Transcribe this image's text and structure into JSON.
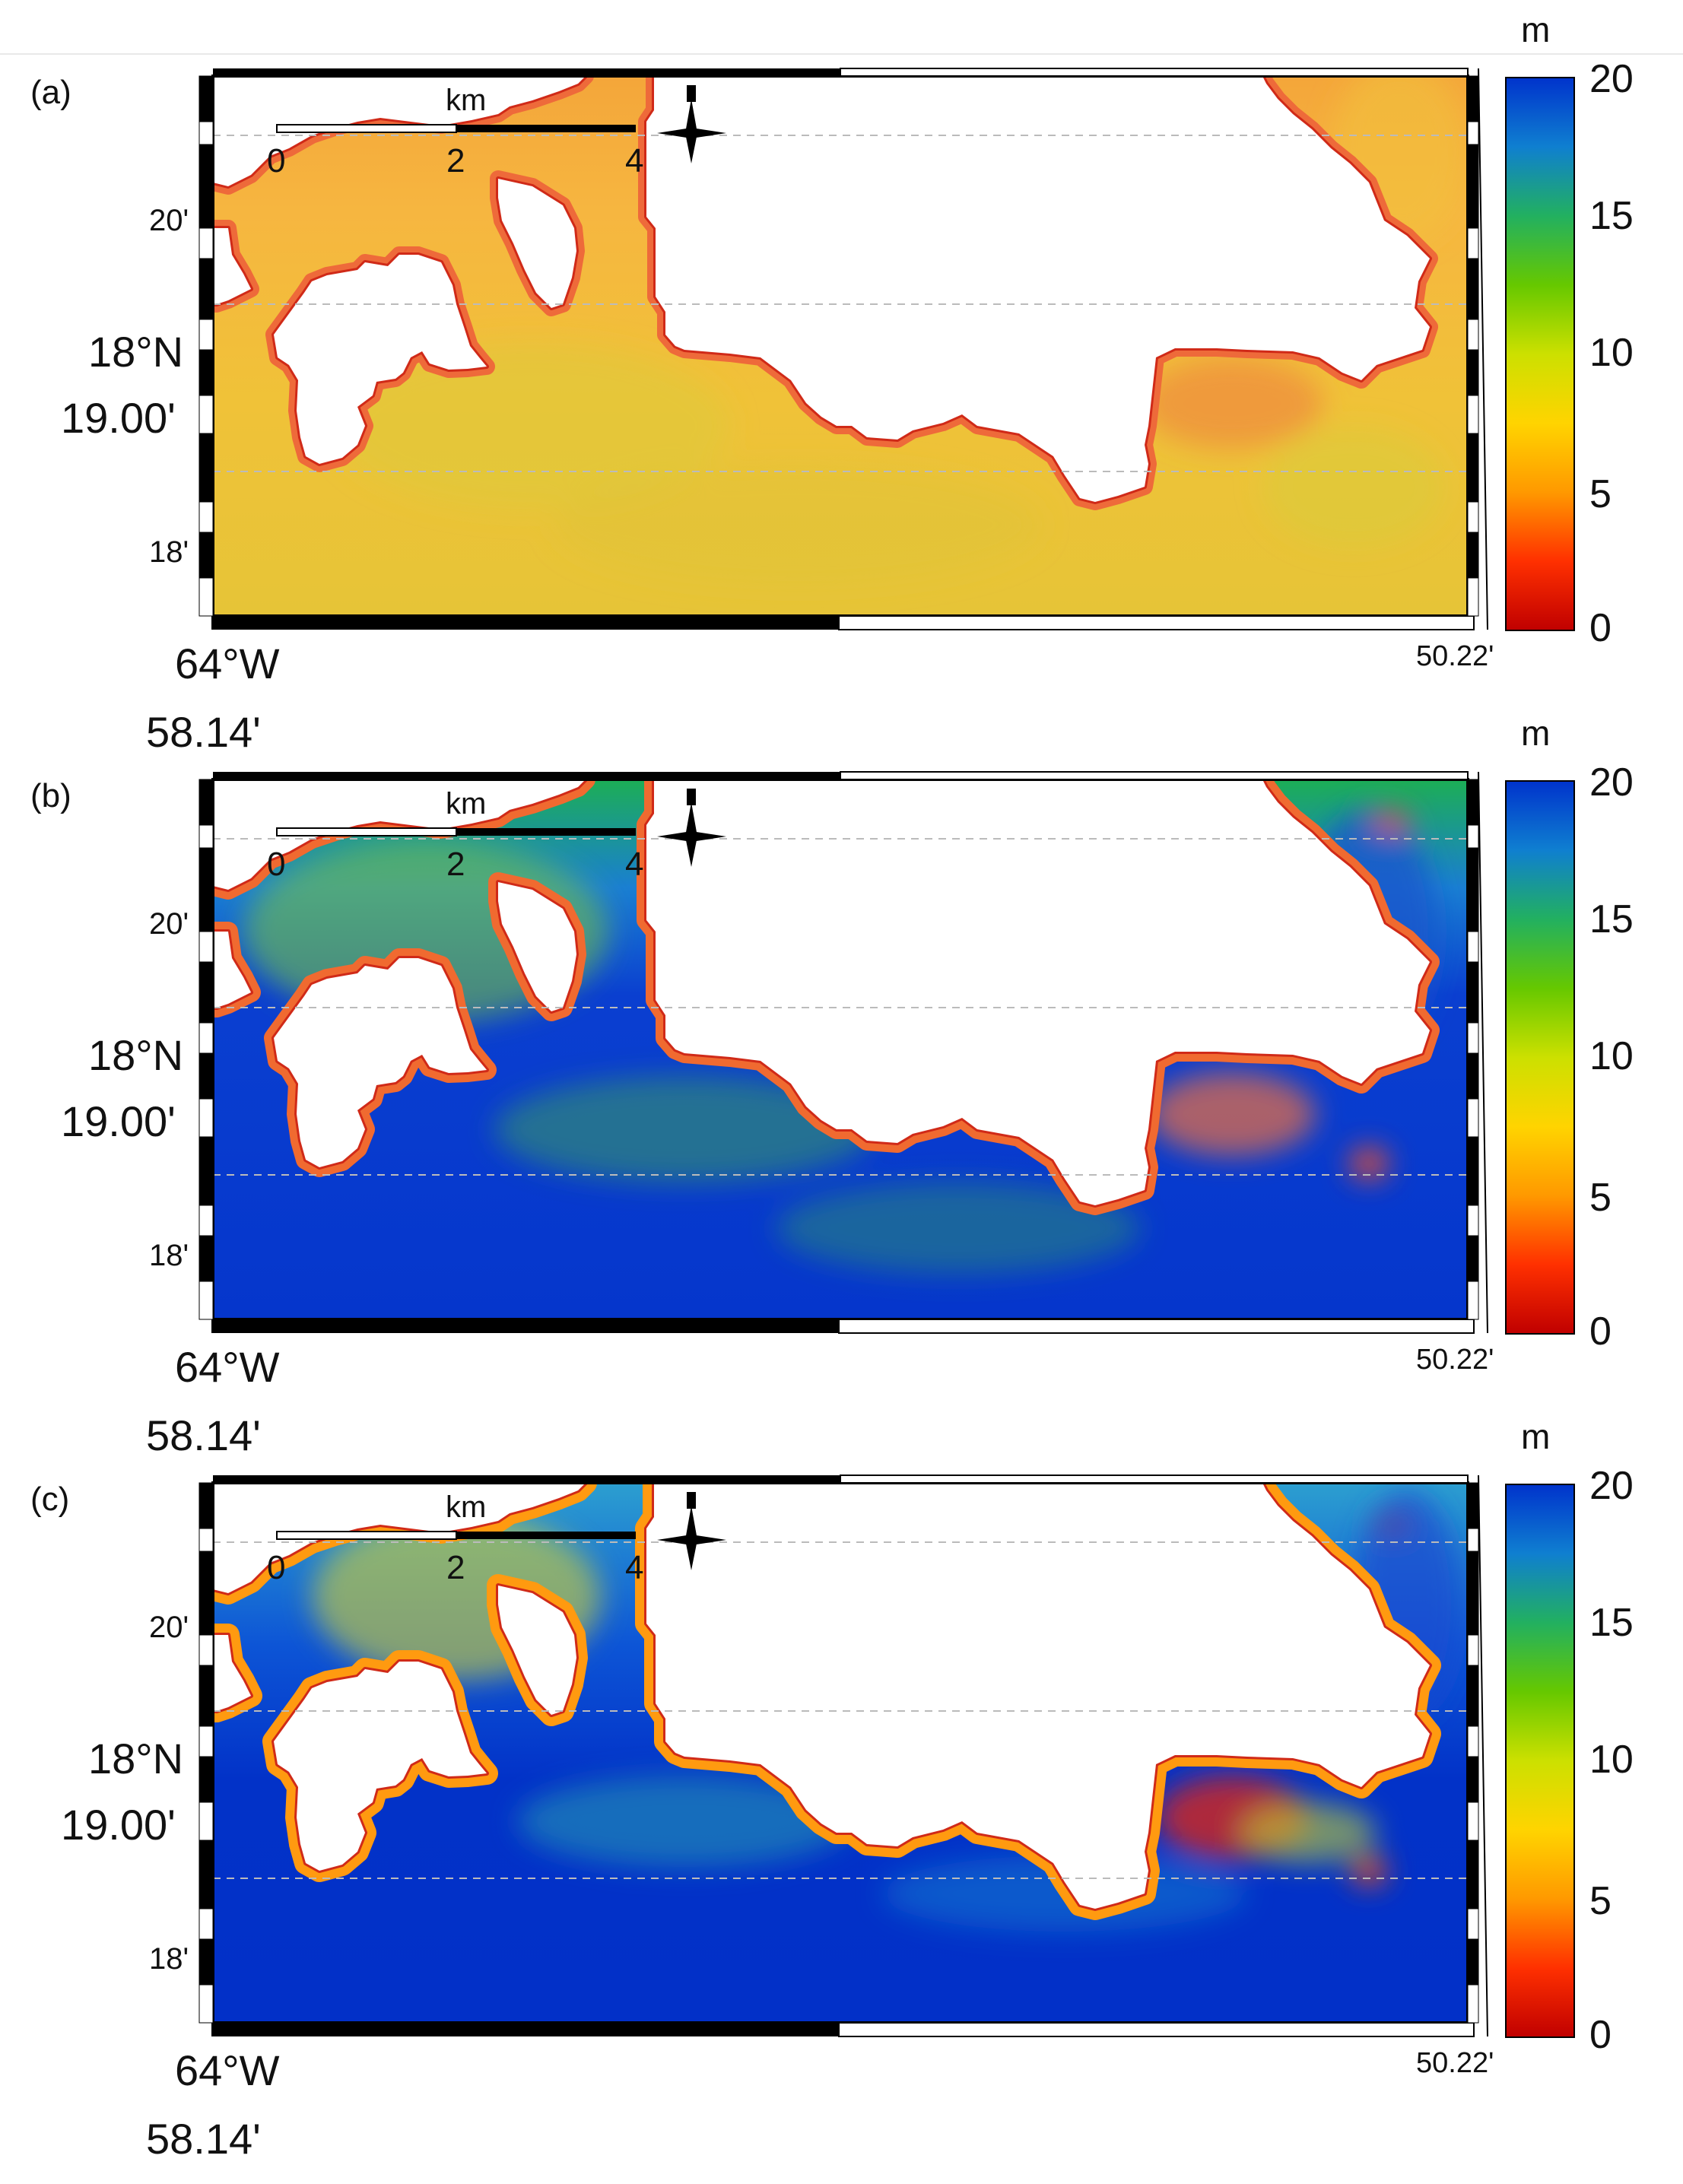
{
  "colorbar": {
    "unit": "m",
    "ticks": [
      "20",
      "15",
      "10",
      "5",
      "0"
    ],
    "range": [
      0,
      20
    ],
    "colors": [
      "#c00000",
      "#ff3000",
      "#ff9900",
      "#ffd400",
      "#cce000",
      "#66c800",
      "#22b060",
      "#0f7fd0",
      "#0033cc"
    ]
  },
  "scalebar": {
    "unit": "km",
    "ticks": [
      "0",
      "2",
      "4"
    ]
  },
  "axes": {
    "lat_ticks": [
      "20'",
      "18°N",
      "19.00'",
      "18'"
    ],
    "lon_ticks": [
      "64°W",
      "58.14'",
      "50.22'"
    ]
  },
  "icons": [
    "north-arrow-icon"
  ],
  "panels": [
    {
      "label": "(a)",
      "scheme": "shallow"
    },
    {
      "label": "(b)",
      "scheme": "noisy"
    },
    {
      "label": "(c)",
      "scheme": "smooth"
    }
  ],
  "colors": {
    "land": "#ffffff",
    "frame": "#000000",
    "grid": "#bbbbbb"
  }
}
